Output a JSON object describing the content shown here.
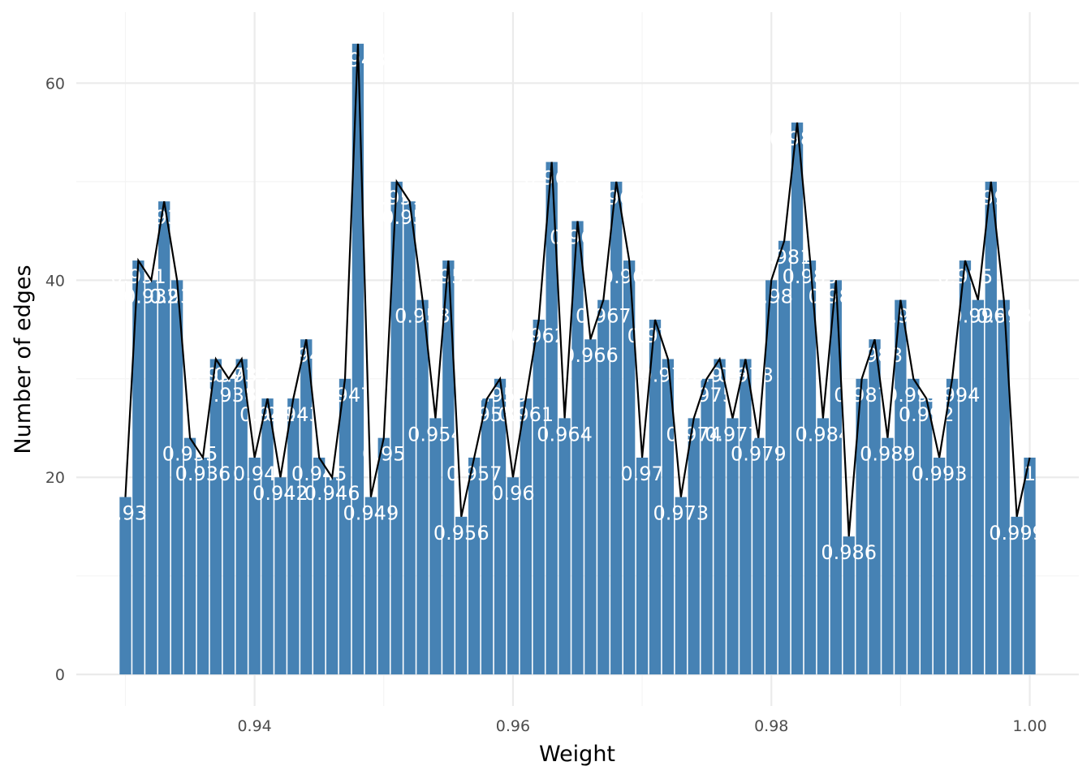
{
  "chart_data": {
    "type": "bar",
    "xlabel": "Weight",
    "ylabel": "Number of edges",
    "xlim": [
      0.9262,
      1.0038
    ],
    "ylim": [
      -3.2,
      67.2
    ],
    "x_ticks": [
      0.94,
      0.96,
      0.98,
      1.0
    ],
    "x_tick_labels": [
      "0.94",
      "0.96",
      "0.98",
      "1.00"
    ],
    "y_ticks": [
      0,
      20,
      40,
      60
    ],
    "y_tick_labels": [
      "0",
      "20",
      "40",
      "60"
    ],
    "grid": true,
    "bar_color": "#4682b4",
    "line_color": "#000000",
    "overlay": "line through bar tops",
    "x": [
      0.93,
      0.931,
      0.932,
      0.933,
      0.934,
      0.935,
      0.936,
      0.937,
      0.938,
      0.939,
      0.94,
      0.941,
      0.942,
      0.943,
      0.944,
      0.945,
      0.946,
      0.947,
      0.948,
      0.949,
      0.95,
      0.951,
      0.952,
      0.953,
      0.954,
      0.955,
      0.956,
      0.957,
      0.958,
      0.959,
      0.96,
      0.961,
      0.962,
      0.963,
      0.964,
      0.965,
      0.966,
      0.967,
      0.968,
      0.969,
      0.97,
      0.971,
      0.972,
      0.973,
      0.974,
      0.975,
      0.976,
      0.977,
      0.978,
      0.979,
      0.98,
      0.981,
      0.982,
      0.983,
      0.984,
      0.985,
      0.986,
      0.987,
      0.988,
      0.989,
      0.99,
      0.991,
      0.992,
      0.993,
      0.994,
      0.995,
      0.996,
      0.997,
      0.998,
      0.999,
      1.0
    ],
    "values": [
      18,
      42,
      40,
      48,
      40,
      24,
      22,
      32,
      30,
      32,
      22,
      28,
      20,
      28,
      34,
      22,
      20,
      30,
      64,
      18,
      24,
      50,
      48,
      38,
      26,
      42,
      16,
      22,
      28,
      30,
      20,
      28,
      36,
      52,
      26,
      46,
      34,
      38,
      50,
      42,
      22,
      36,
      32,
      18,
      26,
      30,
      32,
      26,
      32,
      24,
      40,
      44,
      56,
      42,
      26,
      40,
      14,
      30,
      34,
      24,
      38,
      30,
      28,
      22,
      30,
      42,
      38,
      50,
      38,
      16,
      22
    ],
    "bar_labels": [
      "0.93",
      "0.931",
      "0.932",
      "0.933",
      "0.934",
      "0.935",
      "0.936",
      "0.937",
      "0.938",
      "0.939",
      "0.94",
      "0.941",
      "0.942",
      "0.943",
      "0.944",
      "0.945",
      "0.946",
      "0.947",
      "0.948",
      "0.949",
      "0.95",
      "0.951",
      "0.952",
      "0.953",
      "0.954",
      "0.955",
      "0.956",
      "0.957",
      "0.958",
      "0.959",
      "0.96",
      "0.961",
      "0.962",
      "0.963",
      "0.964",
      "0.965",
      "0.966",
      "0.967",
      "0.968",
      "0.969",
      "0.97",
      "0.971",
      "0.972",
      "0.973",
      "0.974",
      "0.975",
      "0.976",
      "0.977",
      "0.978",
      "0.979",
      "0.98",
      "0.981",
      "0.982",
      "0.983",
      "0.984",
      "0.985",
      "0.986",
      "0.987",
      "0.988",
      "0.989",
      "0.99",
      "0.991",
      "0.992",
      "0.993",
      "0.994",
      "0.995",
      "0.996",
      "0.997",
      "0.998",
      "0.999",
      "1"
    ]
  }
}
